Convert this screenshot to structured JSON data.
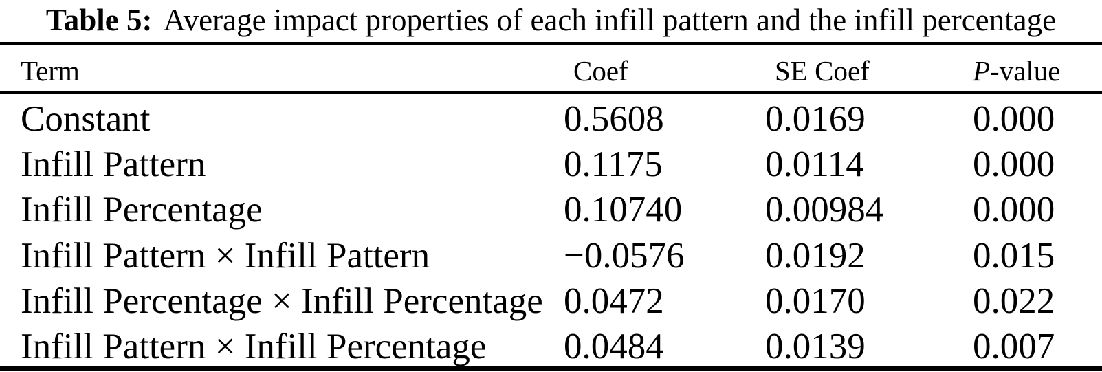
{
  "page": {
    "background": "#ffffff",
    "text_color": "#000000"
  },
  "table": {
    "caption": {
      "label": "Table 5:",
      "text": "Average impact properties of each infill pattern and the infill percentage"
    },
    "header": {
      "term": "Term",
      "coef": "Coef",
      "se_coef": "SE Coef",
      "p_value_italic": "P",
      "p_value_rest": "-value"
    },
    "rows": [
      {
        "term": "Constant",
        "coef": "0.5608",
        "se_coef": "0.0169",
        "p_value": "0.000"
      },
      {
        "term": "Infill Pattern",
        "coef": "0.1175",
        "se_coef": "0.0114",
        "p_value": "0.000"
      },
      {
        "term": "Infill Percentage",
        "coef": "0.10740",
        "se_coef": "0.00984",
        "p_value": "0.000"
      },
      {
        "term": "Infill Pattern × Infill Pattern",
        "coef": "−0.0576",
        "se_coef": "0.0192",
        "p_value": "0.015"
      },
      {
        "term": "Infill Percentage × Infill Percentage",
        "coef": "0.0472",
        "se_coef": "0.0170",
        "p_value": "0.022"
      },
      {
        "term": "Infill Pattern × Infill Percentage",
        "coef": "0.0484",
        "se_coef": "0.0139",
        "p_value": "0.007"
      }
    ]
  }
}
